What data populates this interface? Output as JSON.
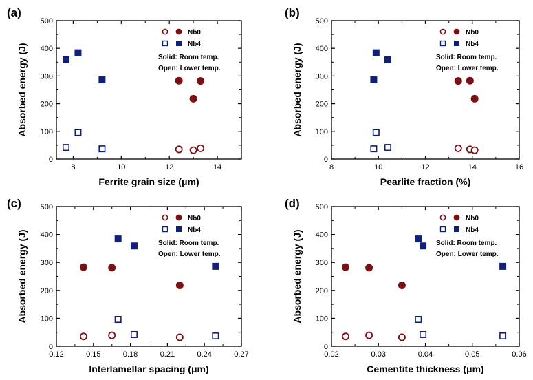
{
  "colors": {
    "nb0": "#7a0f14",
    "nb4": "#0f1f7a",
    "axis": "#000000"
  },
  "chart_data": [
    {
      "type": "scatter",
      "panel_label": "(a)",
      "xlabel": "Ferrite grain size (μm)",
      "ylabel": "Absorbed energy (J)",
      "xlim": [
        7.3,
        15
      ],
      "ylim": [
        0,
        500
      ],
      "xticks": [
        8,
        10,
        12,
        14
      ],
      "xtick_labels": [
        "8",
        "10",
        "12",
        "14"
      ],
      "yticks": [
        0,
        100,
        200,
        300,
        400,
        500
      ],
      "ytick_labels": [
        "0",
        "100",
        "200",
        "300",
        "400",
        "500"
      ],
      "legend": {
        "nb0": "Nb0",
        "nb4": "Nb4",
        "note1": "Solid: Room temp.",
        "note2": "Open: Lower temp."
      },
      "series": [
        {
          "name": "Nb0",
          "marker": "circle",
          "filled": true,
          "x": [
            12.4,
            13.3,
            13.0
          ],
          "y": [
            283,
            282,
            218
          ]
        },
        {
          "name": "Nb0",
          "marker": "circle",
          "filled": false,
          "x": [
            12.4,
            13.0,
            13.3
          ],
          "y": [
            35,
            32,
            39
          ]
        },
        {
          "name": "Nb4",
          "marker": "square",
          "filled": true,
          "x": [
            7.7,
            8.2,
            9.2
          ],
          "y": [
            359,
            384,
            286
          ]
        },
        {
          "name": "Nb4",
          "marker": "square",
          "filled": false,
          "x": [
            7.7,
            8.2,
            9.2
          ],
          "y": [
            42,
            96,
            37
          ]
        }
      ]
    },
    {
      "type": "scatter",
      "panel_label": "(b)",
      "xlabel": "Pearlite fraction (%)",
      "ylabel": "Absorbed energy (J)",
      "xlim": [
        8,
        16
      ],
      "ylim": [
        0,
        500
      ],
      "xticks": [
        8,
        10,
        12,
        14,
        16
      ],
      "xtick_labels": [
        "8",
        "10",
        "12",
        "14",
        "16"
      ],
      "yticks": [
        0,
        100,
        200,
        300,
        400,
        500
      ],
      "ytick_labels": [
        "0",
        "100",
        "200",
        "300",
        "400",
        "500"
      ],
      "legend": {
        "nb0": "Nb0",
        "nb4": "Nb4",
        "note1": "Solid: Room temp.",
        "note2": "Open: Lower temp."
      },
      "series": [
        {
          "name": "Nb0",
          "marker": "circle",
          "filled": true,
          "x": [
            13.4,
            13.9,
            14.1
          ],
          "y": [
            282,
            283,
            218
          ]
        },
        {
          "name": "Nb0",
          "marker": "circle",
          "filled": false,
          "x": [
            13.4,
            13.9,
            14.1
          ],
          "y": [
            39,
            35,
            32
          ]
        },
        {
          "name": "Nb4",
          "marker": "square",
          "filled": true,
          "x": [
            9.9,
            10.4,
            9.8
          ],
          "y": [
            384,
            359,
            286
          ]
        },
        {
          "name": "Nb4",
          "marker": "square",
          "filled": false,
          "x": [
            9.8,
            9.9,
            10.4
          ],
          "y": [
            37,
            96,
            42
          ]
        }
      ]
    },
    {
      "type": "scatter",
      "panel_label": "(c)",
      "xlabel": "Interlamellar spacing (μm)",
      "ylabel": "Absorbed energy (J)",
      "xlim": [
        0.12,
        0.27
      ],
      "ylim": [
        0,
        500
      ],
      "xticks": [
        0.12,
        0.15,
        0.18,
        0.21,
        0.24,
        0.27
      ],
      "xtick_labels": [
        "0.12",
        "0.15",
        "0.18",
        "0.21",
        "0.24",
        "0.27"
      ],
      "yticks": [
        0,
        100,
        200,
        300,
        400,
        500
      ],
      "ytick_labels": [
        "0",
        "100",
        "200",
        "300",
        "400",
        "500"
      ],
      "legend": {
        "nb0": "Nb0",
        "nb4": "Nb4",
        "note1": "Solid: Room temp.",
        "note2": "Open: Lower temp."
      },
      "series": [
        {
          "name": "Nb0",
          "marker": "circle",
          "filled": true,
          "x": [
            0.142,
            0.165,
            0.22
          ],
          "y": [
            283,
            281,
            218
          ]
        },
        {
          "name": "Nb0",
          "marker": "circle",
          "filled": false,
          "x": [
            0.142,
            0.165,
            0.22
          ],
          "y": [
            35,
            39,
            32
          ]
        },
        {
          "name": "Nb4",
          "marker": "square",
          "filled": true,
          "x": [
            0.17,
            0.183,
            0.249
          ],
          "y": [
            384,
            359,
            286
          ]
        },
        {
          "name": "Nb4",
          "marker": "square",
          "filled": false,
          "x": [
            0.17,
            0.183,
            0.249
          ],
          "y": [
            96,
            42,
            37
          ]
        }
      ]
    },
    {
      "type": "scatter",
      "panel_label": "(d)",
      "xlabel": "Cementite thickness (μm)",
      "ylabel": "Absorbed energy (J)",
      "xlim": [
        0.02,
        0.06
      ],
      "ylim": [
        0,
        500
      ],
      "xticks": [
        0.02,
        0.03,
        0.04,
        0.05,
        0.06
      ],
      "xtick_labels": [
        "0.02",
        "0.03",
        "0.04",
        "0.05",
        "0.06"
      ],
      "yticks": [
        0,
        100,
        200,
        300,
        400,
        500
      ],
      "ytick_labels": [
        "0",
        "100",
        "200",
        "300",
        "400",
        "500"
      ],
      "legend": {
        "nb0": "Nb0",
        "nb4": "Nb4",
        "note1": "Solid: Room temp.",
        "note2": "Open: Lower temp."
      },
      "series": [
        {
          "name": "Nb0",
          "marker": "circle",
          "filled": true,
          "x": [
            0.023,
            0.028,
            0.035
          ],
          "y": [
            283,
            281,
            218
          ]
        },
        {
          "name": "Nb0",
          "marker": "circle",
          "filled": false,
          "x": [
            0.023,
            0.028,
            0.035
          ],
          "y": [
            35,
            39,
            32
          ]
        },
        {
          "name": "Nb4",
          "marker": "square",
          "filled": true,
          "x": [
            0.0385,
            0.0395,
            0.0565
          ],
          "y": [
            384,
            359,
            286
          ]
        },
        {
          "name": "Nb4",
          "marker": "square",
          "filled": false,
          "x": [
            0.0385,
            0.0395,
            0.0565
          ],
          "y": [
            96,
            42,
            37
          ]
        }
      ]
    }
  ]
}
